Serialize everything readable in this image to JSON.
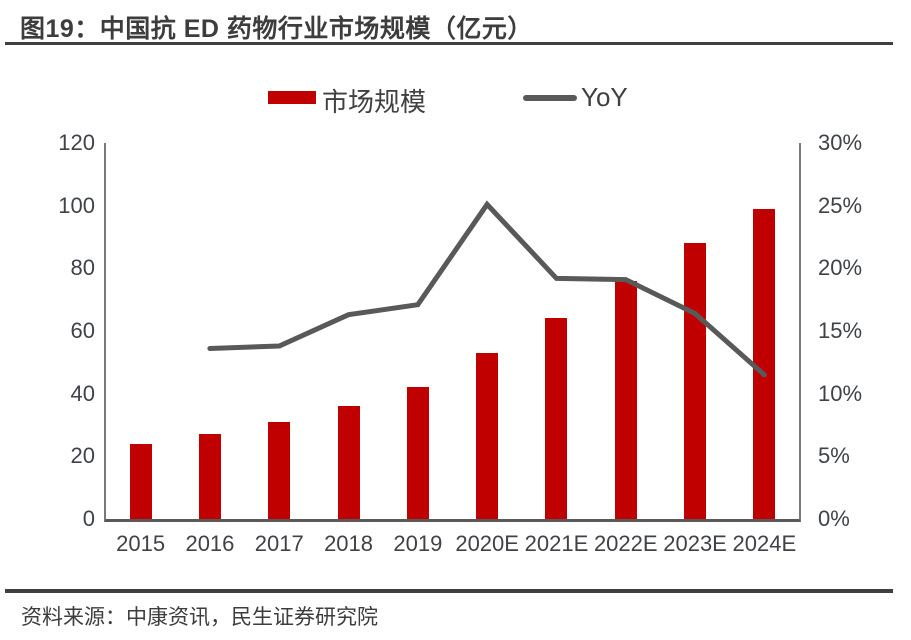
{
  "header": {
    "title": "图19：中国抗 ED 药物行业市场规模（亿元）"
  },
  "legend": {
    "bar_label": "市场规模",
    "line_label": "YoY"
  },
  "footer": {
    "source": "资料来源：中康资讯，民生证券研究院"
  },
  "colors": {
    "bar": "#c00000",
    "line": "#595959",
    "axis": "#7a7a7a",
    "baseline": "#595959",
    "tick_text": "#3f4349",
    "rule": "#404040"
  },
  "chart_data": {
    "type": "bar",
    "title": "中国抗 ED 药物行业市场规模（亿元）",
    "categories": [
      "2015",
      "2016",
      "2017",
      "2018",
      "2019",
      "2020E",
      "2021E",
      "2022E",
      "2023E",
      "2024E"
    ],
    "series": [
      {
        "name": "市场规模",
        "type": "bar",
        "axis": "left",
        "unit": "亿元",
        "values": [
          24,
          27,
          31,
          36,
          42,
          53,
          64,
          76,
          88,
          99
        ]
      },
      {
        "name": "YoY",
        "type": "line",
        "axis": "right",
        "unit": "%",
        "values": [
          null,
          13.6,
          13.8,
          16.3,
          17.1,
          25.1,
          19.2,
          19.1,
          16.4,
          11.5
        ]
      }
    ],
    "left_axis": {
      "min": 0,
      "max": 120,
      "step": 20,
      "ticks": [
        "0",
        "20",
        "40",
        "60",
        "80",
        "100",
        "120"
      ]
    },
    "right_axis": {
      "min": 0,
      "max": 30,
      "step": 5,
      "ticks": [
        "0%",
        "5%",
        "10%",
        "15%",
        "20%",
        "25%",
        "30%"
      ]
    },
    "grid": false,
    "legend_position": "top-center"
  }
}
